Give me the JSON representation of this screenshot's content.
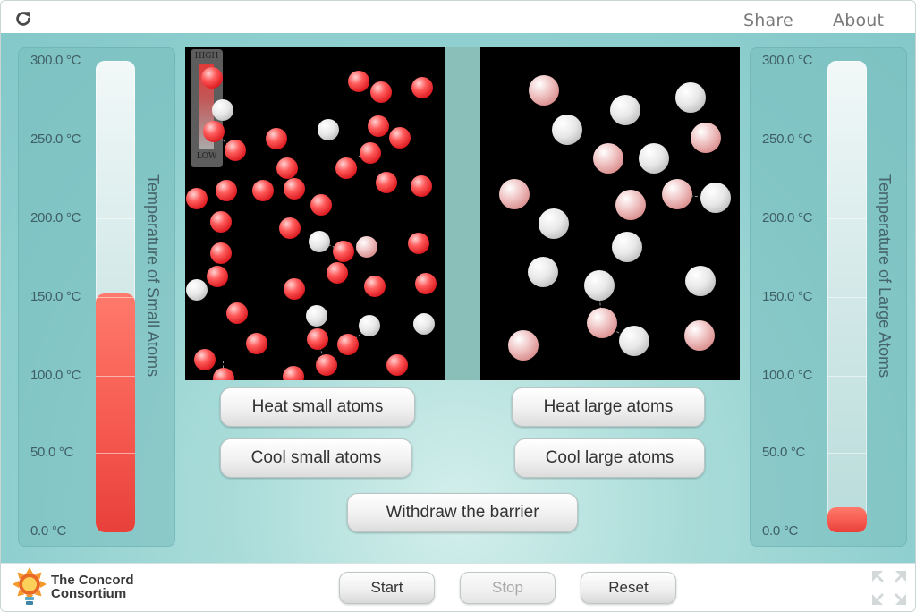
{
  "topbar": {
    "share_label": "Share",
    "about_label": "About"
  },
  "left_thermometer": {
    "title": "Temperature of Small Atoms",
    "ticks": [
      "300.0 °C",
      "250.0 °C",
      "200.0 °C",
      "150.0 °C",
      "100.0 °C",
      "50.0 °C",
      "0.0 °C"
    ],
    "range_c": [
      0,
      300
    ],
    "value_c": 152,
    "fill_color": "#f65a50"
  },
  "right_thermometer": {
    "title": "Temperature of Large Atoms",
    "ticks": [
      "300.0 °C",
      "250.0 °C",
      "200.0 °C",
      "150.0 °C",
      "100.0 °C",
      "50.0 °C",
      "0.0 °C"
    ],
    "range_c": [
      0,
      300
    ],
    "value_c": 16,
    "fill_color": "#f65a50"
  },
  "legend": {
    "high_label": "HIGH",
    "low_label": "LOW"
  },
  "buttons": {
    "heat_small": "Heat small atoms",
    "cool_small": "Cool small atoms",
    "heat_large": "Heat large atoms",
    "cool_large": "Cool large atoms",
    "withdraw": "Withdraw the barrier"
  },
  "controls": {
    "start": "Start",
    "stop": "Stop",
    "reset": "Reset"
  },
  "logo": {
    "line1": "The Concord",
    "line2": "Consortium"
  },
  "colors": {
    "accent": "#8fcfcf",
    "hot_atom": "#e8232a",
    "cool_atom": "#d9d9d9"
  }
}
